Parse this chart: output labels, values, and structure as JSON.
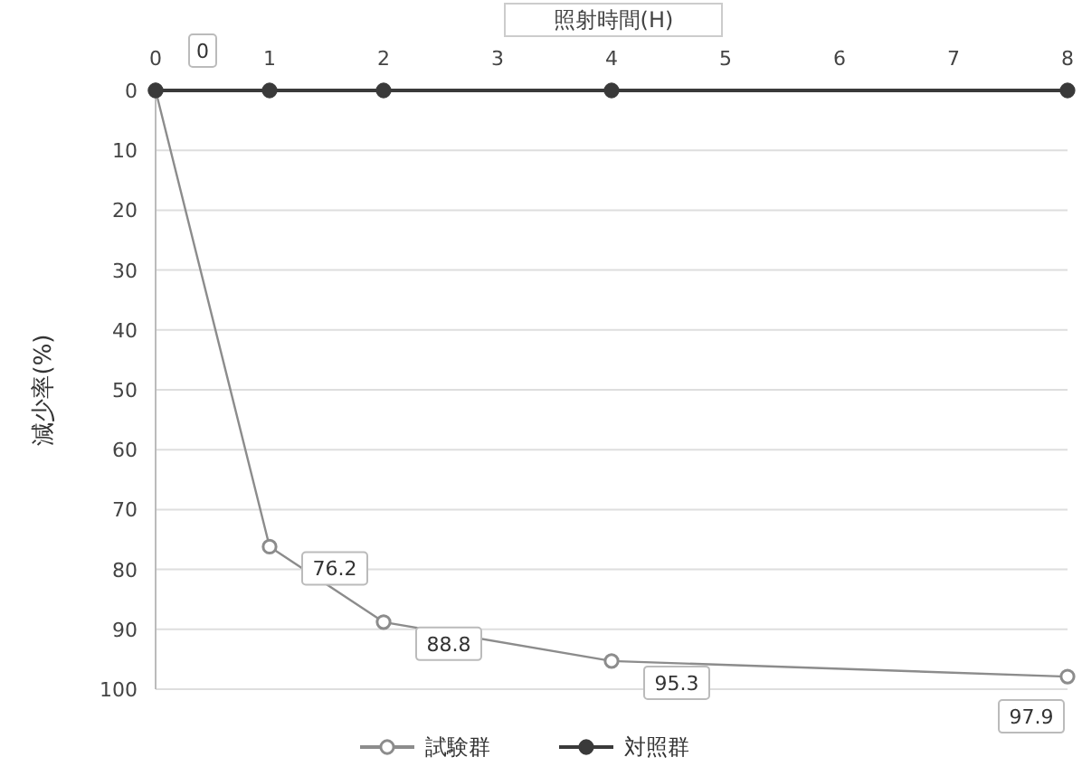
{
  "chart_data": {
    "type": "line",
    "xlabel": "照射時間(H)",
    "ylabel": "減少率(%)",
    "xlim": [
      0,
      8
    ],
    "xticks": [
      0,
      1,
      2,
      3,
      4,
      5,
      6,
      7,
      8
    ],
    "ylim": [
      100,
      0
    ],
    "yticks": [
      0,
      10,
      20,
      30,
      40,
      50,
      60,
      70,
      80,
      90,
      100
    ],
    "grid": "y",
    "legend": "bottom",
    "marker": "circle",
    "line_style": "solid",
    "series": [
      {
        "name": "試験群",
        "color": "#8c8c8c",
        "x": [
          0,
          1,
          2,
          4,
          8
        ],
        "values": [
          0,
          76.2,
          88.8,
          95.3,
          97.9
        ],
        "value_labels": [
          "0",
          "76.2",
          "88.8",
          "95.3",
          "97.9"
        ]
      },
      {
        "name": "対照群",
        "color": "#3a3a3a",
        "x": [
          0,
          1,
          2,
          4,
          8
        ],
        "values": [
          0,
          0,
          0,
          0,
          0
        ]
      }
    ]
  }
}
